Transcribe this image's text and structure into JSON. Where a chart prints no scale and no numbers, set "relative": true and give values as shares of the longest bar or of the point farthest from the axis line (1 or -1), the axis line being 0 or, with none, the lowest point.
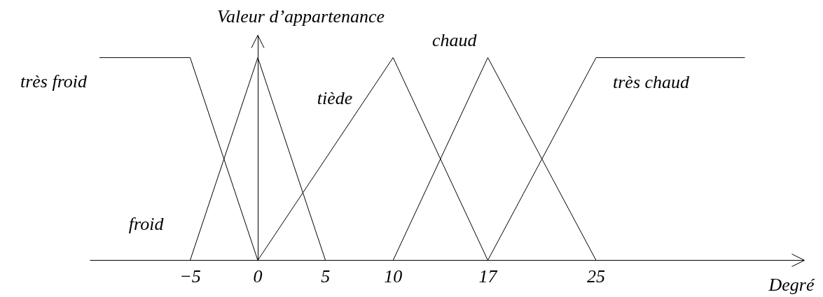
{
  "chart_data": {
    "type": "line",
    "xlabel": "Degré",
    "ylabel": "Valeur d’appartenance",
    "relative": true,
    "xlim": [
      -12.4,
      40.4
    ],
    "xticks": [
      -5,
      0,
      5,
      10,
      17,
      25
    ],
    "marker": "none",
    "line_style": "solid",
    "series": [
      {
        "name": "très froid",
        "color": "#000000",
        "x": [
          -11.7,
          -5,
          0
        ],
        "values": [
          1,
          1,
          0
        ]
      },
      {
        "name": "froid",
        "color": "#000000",
        "x": [
          -5,
          0,
          5
        ],
        "values": [
          0,
          1,
          0
        ]
      },
      {
        "name": "tiède",
        "color": "#000000",
        "x": [
          0,
          10,
          17
        ],
        "values": [
          0,
          1,
          0
        ]
      },
      {
        "name": "chaud",
        "color": "#000000",
        "x": [
          10,
          17,
          25
        ],
        "values": [
          0,
          1,
          0
        ]
      },
      {
        "name": "très chaud",
        "color": "#000000",
        "x": [
          17,
          25,
          36
        ],
        "values": [
          0,
          1,
          1
        ]
      }
    ]
  }
}
